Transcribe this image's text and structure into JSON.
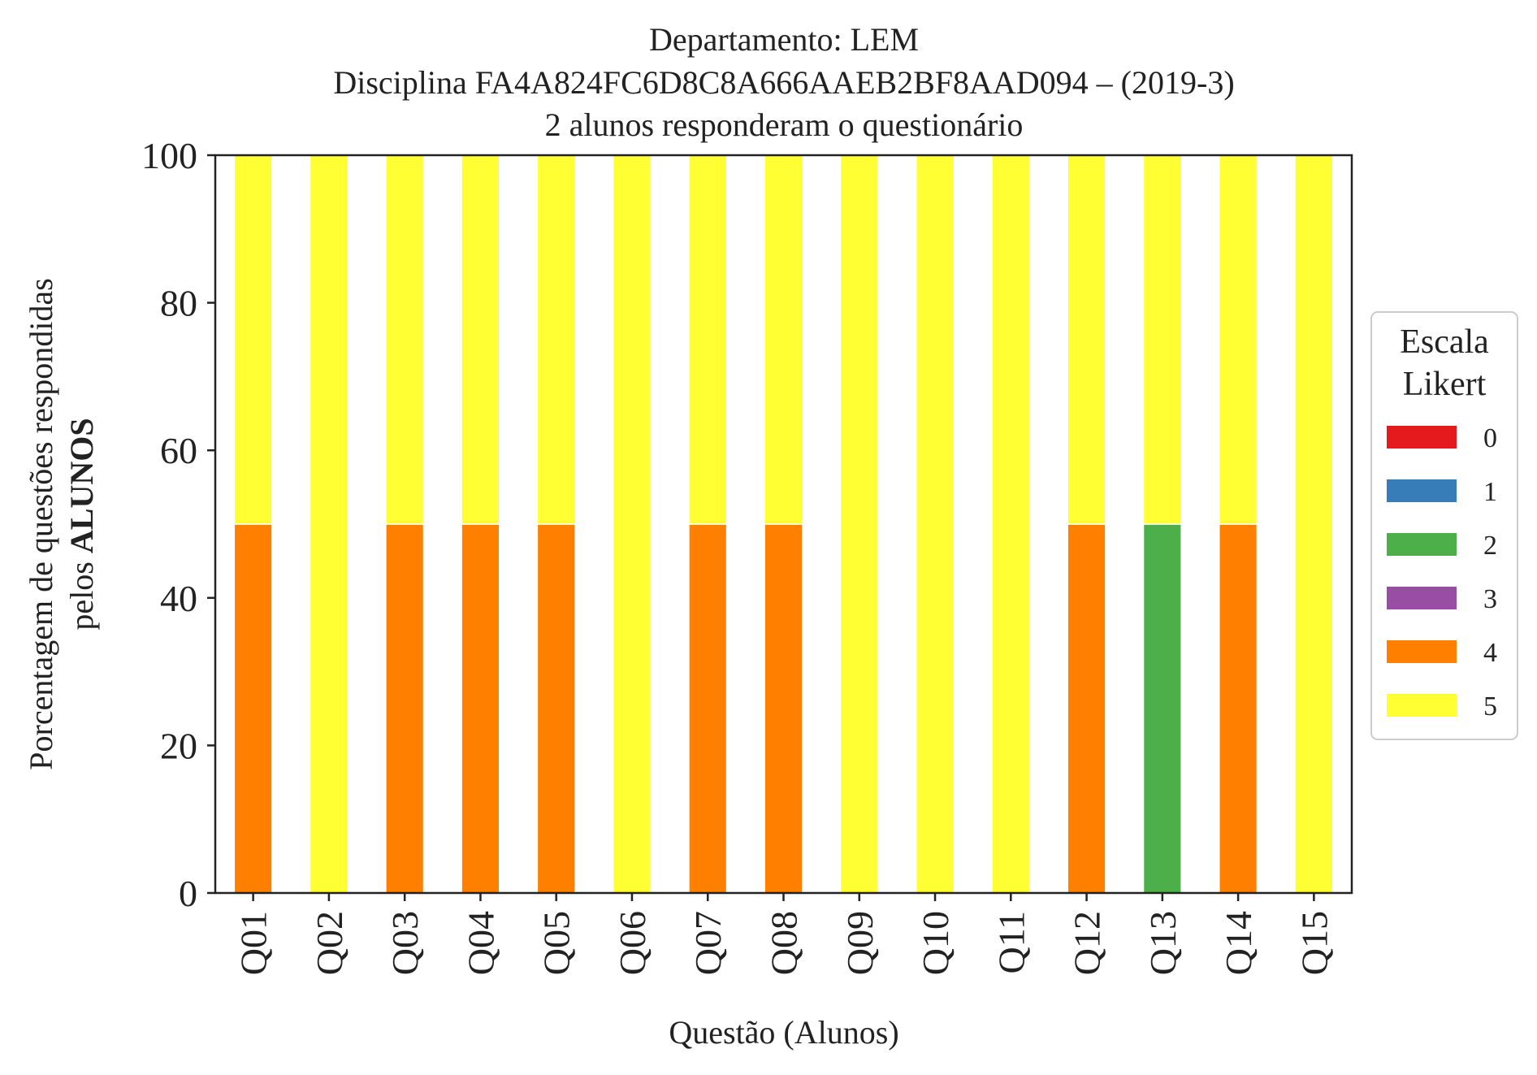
{
  "chart_data": {
    "type": "bar",
    "stacked": true,
    "title_lines": [
      "Departamento: LEM",
      "Disciplina FA4A824FC6D8C8A666AAEB2BF8AAD094 – (2019-3)",
      "2 alunos responderam o questionário"
    ],
    "xlabel": "Questão (Alunos)",
    "ylabel_line1": "Porcentagem de questões respondidas",
    "ylabel_line2_prefix": "pelos ",
    "ylabel_line2_bold": "ALUNOS",
    "ylim": [
      0,
      100
    ],
    "yticks": [
      0,
      20,
      40,
      60,
      80,
      100
    ],
    "grid": false,
    "legend_placement": "center-right-outside",
    "legend_title_lines": [
      "Escala",
      "Likert"
    ],
    "categories": [
      "Q01",
      "Q02",
      "Q03",
      "Q04",
      "Q05",
      "Q06",
      "Q07",
      "Q08",
      "Q09",
      "Q10",
      "Q11",
      "Q12",
      "Q13",
      "Q14",
      "Q15"
    ],
    "series": [
      {
        "name": "0",
        "color": "#e41a1c",
        "values": [
          0,
          0,
          0,
          0,
          0,
          0,
          0,
          0,
          0,
          0,
          0,
          0,
          0,
          0,
          0
        ]
      },
      {
        "name": "1",
        "color": "#377eb8",
        "values": [
          0,
          0,
          0,
          0,
          0,
          0,
          0,
          0,
          0,
          0,
          0,
          0,
          0,
          0,
          0
        ]
      },
      {
        "name": "2",
        "color": "#4daf4a",
        "values": [
          0,
          0,
          0,
          0,
          0,
          0,
          0,
          0,
          0,
          0,
          0,
          0,
          50,
          0,
          0
        ]
      },
      {
        "name": "3",
        "color": "#984ea3",
        "values": [
          0,
          0,
          0,
          0,
          0,
          0,
          0,
          0,
          0,
          0,
          0,
          0,
          0,
          0,
          0
        ]
      },
      {
        "name": "4",
        "color": "#ff7f00",
        "values": [
          50,
          0,
          50,
          50,
          50,
          0,
          50,
          50,
          0,
          0,
          0,
          50,
          0,
          50,
          0
        ]
      },
      {
        "name": "5",
        "color": "#ffff33",
        "values": [
          50,
          100,
          50,
          50,
          50,
          100,
          50,
          50,
          100,
          100,
          100,
          50,
          50,
          50,
          100
        ]
      }
    ]
  }
}
